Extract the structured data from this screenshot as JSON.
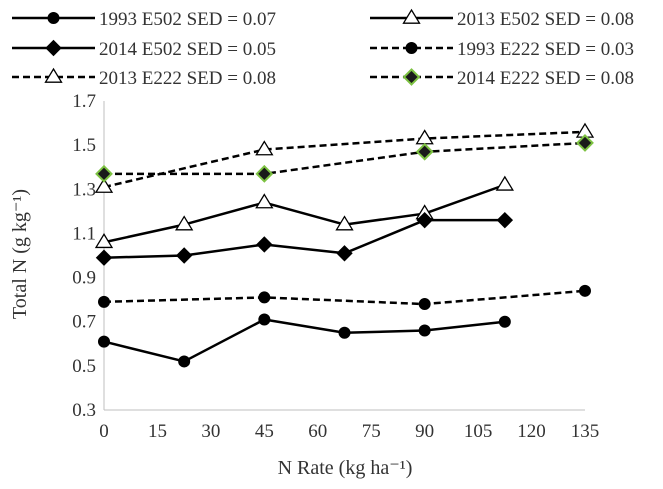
{
  "chart_data": {
    "type": "line",
    "xlabel": "N Rate (kg ha⁻¹)",
    "ylabel": "Total N (g kg⁻¹)",
    "xlim": [
      0,
      135
    ],
    "ylim": [
      0.3,
      1.7
    ],
    "x_ticks": [
      "0",
      "15",
      "30",
      "45",
      "60",
      "75",
      "90",
      "105",
      "120",
      "135"
    ],
    "y_ticks": [
      "0.3",
      "0.5",
      "0.7",
      "0.9",
      "1.1",
      "1.3",
      "1.5",
      "1.7"
    ],
    "grid": false,
    "legend_position": "top",
    "series": [
      {
        "name": "1993 E502 SED = 0.07",
        "line": "solid",
        "marker": "circle",
        "marker_fill": "#000000",
        "x": [
          0,
          22.5,
          45,
          67.5,
          90,
          112.5
        ],
        "y": [
          0.61,
          0.52,
          0.71,
          0.65,
          0.66,
          0.7
        ]
      },
      {
        "name": "2013 E502 SED = 0.08",
        "line": "solid",
        "marker": "triangle",
        "marker_fill": "#ffffff",
        "x": [
          0,
          22.5,
          45,
          67.5,
          90,
          112.5
        ],
        "y": [
          1.06,
          1.14,
          1.24,
          1.14,
          1.19,
          1.32
        ]
      },
      {
        "name": "2014 E502 SED = 0.05",
        "line": "solid",
        "marker": "diamond",
        "marker_fill": "#000000",
        "x": [
          0,
          22.5,
          45,
          67.5,
          90,
          112.5
        ],
        "y": [
          0.99,
          1.0,
          1.05,
          1.01,
          1.16,
          1.16
        ]
      },
      {
        "name": "1993 E222 SED = 0.03",
        "line": "dashed",
        "marker": "circle",
        "marker_fill": "#000000",
        "x": [
          0,
          45,
          90,
          135
        ],
        "y": [
          0.79,
          0.81,
          0.78,
          0.84
        ]
      },
      {
        "name": "2013 E222 SED = 0.08",
        "line": "dashed",
        "marker": "triangle",
        "marker_fill": "#ffffff",
        "x": [
          0,
          45,
          90,
          135
        ],
        "y": [
          1.31,
          1.48,
          1.53,
          1.56
        ]
      },
      {
        "name": "2014 E222 SED = 0.08",
        "line": "dashed",
        "marker": "diamond",
        "marker_fill": "#1a1a1a",
        "marker_stroke": "#7dc242",
        "x": [
          0,
          45,
          90,
          135
        ],
        "y": [
          1.37,
          1.37,
          1.47,
          1.51
        ]
      }
    ]
  },
  "colors": {
    "line": "#000000",
    "axis": "#bfbfbf",
    "text": "#333333",
    "diamond_edge": "#7dc242"
  }
}
